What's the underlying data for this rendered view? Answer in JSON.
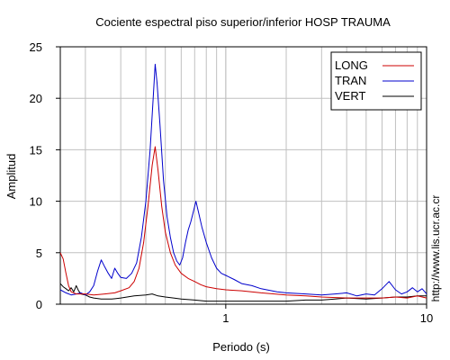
{
  "chart_data": {
    "type": "line",
    "title": "Cociente espectral piso superior/inferior  HOSP TRAUMA",
    "xlabel": "Periodo (s)",
    "ylabel": "Amplitud",
    "x_scale": "log",
    "xlim": [
      0.15,
      10
    ],
    "ylim": [
      0,
      25
    ],
    "x_ticks": [
      {
        "value": 1,
        "label": "1"
      },
      {
        "value": 10,
        "label": "10"
      }
    ],
    "y_ticks": [
      0,
      5,
      10,
      15,
      20,
      25
    ],
    "grid": true,
    "legend_position": "top-right",
    "watermark": "http://www.lis.ucr.ac.cr",
    "series": [
      {
        "name": "LONG",
        "color": "#cc0000",
        "points": [
          [
            0.15,
            5.0
          ],
          [
            0.155,
            4.4
          ],
          [
            0.16,
            3.0
          ],
          [
            0.165,
            1.8
          ],
          [
            0.17,
            1.2
          ],
          [
            0.18,
            1.0
          ],
          [
            0.2,
            1.0
          ],
          [
            0.22,
            0.9
          ],
          [
            0.25,
            1.0
          ],
          [
            0.28,
            1.1
          ],
          [
            0.3,
            1.3
          ],
          [
            0.33,
            1.6
          ],
          [
            0.35,
            2.2
          ],
          [
            0.37,
            3.5
          ],
          [
            0.39,
            6.0
          ],
          [
            0.41,
            9.5
          ],
          [
            0.43,
            13.5
          ],
          [
            0.445,
            15.3
          ],
          [
            0.46,
            13.0
          ],
          [
            0.48,
            9.5
          ],
          [
            0.5,
            7.0
          ],
          [
            0.53,
            5.0
          ],
          [
            0.56,
            3.8
          ],
          [
            0.6,
            3.0
          ],
          [
            0.65,
            2.5
          ],
          [
            0.7,
            2.2
          ],
          [
            0.75,
            1.9
          ],
          [
            0.8,
            1.7
          ],
          [
            0.9,
            1.5
          ],
          [
            1.0,
            1.4
          ],
          [
            1.2,
            1.3
          ],
          [
            1.5,
            1.1
          ],
          [
            2.0,
            0.9
          ],
          [
            2.5,
            0.8
          ],
          [
            3.0,
            0.7
          ],
          [
            4.0,
            0.6
          ],
          [
            5.0,
            0.6
          ],
          [
            6.0,
            0.6
          ],
          [
            7.0,
            0.7
          ],
          [
            8.0,
            0.6
          ],
          [
            9.0,
            0.8
          ],
          [
            10.0,
            0.6
          ]
        ]
      },
      {
        "name": "TRAN",
        "color": "#0000cc",
        "points": [
          [
            0.15,
            1.4
          ],
          [
            0.16,
            1.1
          ],
          [
            0.17,
            0.9
          ],
          [
            0.18,
            1.0
          ],
          [
            0.19,
            1.1
          ],
          [
            0.2,
            0.9
          ],
          [
            0.21,
            1.2
          ],
          [
            0.22,
            1.8
          ],
          [
            0.23,
            3.2
          ],
          [
            0.24,
            4.3
          ],
          [
            0.25,
            3.6
          ],
          [
            0.26,
            3.0
          ],
          [
            0.27,
            2.5
          ],
          [
            0.28,
            3.5
          ],
          [
            0.29,
            3.0
          ],
          [
            0.3,
            2.6
          ],
          [
            0.32,
            2.5
          ],
          [
            0.34,
            3.0
          ],
          [
            0.36,
            4.0
          ],
          [
            0.38,
            6.5
          ],
          [
            0.4,
            10.0
          ],
          [
            0.42,
            15.0
          ],
          [
            0.435,
            20.0
          ],
          [
            0.445,
            23.3
          ],
          [
            0.455,
            21.5
          ],
          [
            0.47,
            17.5
          ],
          [
            0.49,
            12.0
          ],
          [
            0.51,
            8.5
          ],
          [
            0.53,
            6.5
          ],
          [
            0.55,
            5.0
          ],
          [
            0.57,
            4.2
          ],
          [
            0.59,
            3.8
          ],
          [
            0.61,
            4.5
          ],
          [
            0.63,
            6.0
          ],
          [
            0.65,
            7.2
          ],
          [
            0.67,
            8.0
          ],
          [
            0.69,
            9.0
          ],
          [
            0.71,
            10.0
          ],
          [
            0.73,
            9.0
          ],
          [
            0.76,
            7.5
          ],
          [
            0.8,
            6.0
          ],
          [
            0.85,
            4.5
          ],
          [
            0.9,
            3.5
          ],
          [
            0.95,
            3.0
          ],
          [
            1.0,
            2.8
          ],
          [
            1.1,
            2.4
          ],
          [
            1.2,
            2.0
          ],
          [
            1.35,
            1.8
          ],
          [
            1.5,
            1.5
          ],
          [
            1.8,
            1.2
          ],
          [
            2.0,
            1.1
          ],
          [
            2.5,
            1.0
          ],
          [
            3.0,
            0.9
          ],
          [
            3.5,
            1.0
          ],
          [
            4.0,
            1.1
          ],
          [
            4.5,
            0.8
          ],
          [
            5.0,
            1.0
          ],
          [
            5.5,
            0.9
          ],
          [
            6.0,
            1.5
          ],
          [
            6.5,
            2.2
          ],
          [
            7.0,
            1.4
          ],
          [
            7.5,
            1.0
          ],
          [
            8.0,
            1.2
          ],
          [
            8.5,
            1.6
          ],
          [
            9.0,
            1.2
          ],
          [
            9.5,
            1.5
          ],
          [
            10.0,
            1.0
          ]
        ]
      },
      {
        "name": "VERT",
        "color": "#000000",
        "points": [
          [
            0.15,
            2.0
          ],
          [
            0.155,
            1.7
          ],
          [
            0.16,
            1.5
          ],
          [
            0.165,
            1.3
          ],
          [
            0.17,
            1.6
          ],
          [
            0.175,
            1.2
          ],
          [
            0.18,
            1.8
          ],
          [
            0.185,
            1.3
          ],
          [
            0.19,
            1.0
          ],
          [
            0.2,
            0.9
          ],
          [
            0.21,
            0.7
          ],
          [
            0.22,
            0.6
          ],
          [
            0.24,
            0.5
          ],
          [
            0.27,
            0.5
          ],
          [
            0.3,
            0.6
          ],
          [
            0.35,
            0.8
          ],
          [
            0.4,
            0.9
          ],
          [
            0.43,
            1.0
          ],
          [
            0.46,
            0.8
          ],
          [
            0.5,
            0.7
          ],
          [
            0.55,
            0.6
          ],
          [
            0.6,
            0.5
          ],
          [
            0.7,
            0.4
          ],
          [
            0.8,
            0.3
          ],
          [
            1.0,
            0.3
          ],
          [
            1.3,
            0.3
          ],
          [
            1.6,
            0.3
          ],
          [
            2.0,
            0.3
          ],
          [
            2.5,
            0.4
          ],
          [
            3.0,
            0.4
          ],
          [
            3.5,
            0.5
          ],
          [
            4.0,
            0.6
          ],
          [
            5.0,
            0.5
          ],
          [
            6.0,
            0.6
          ],
          [
            7.0,
            0.7
          ],
          [
            8.0,
            0.7
          ],
          [
            9.0,
            0.8
          ],
          [
            10.0,
            0.8
          ]
        ]
      }
    ]
  }
}
